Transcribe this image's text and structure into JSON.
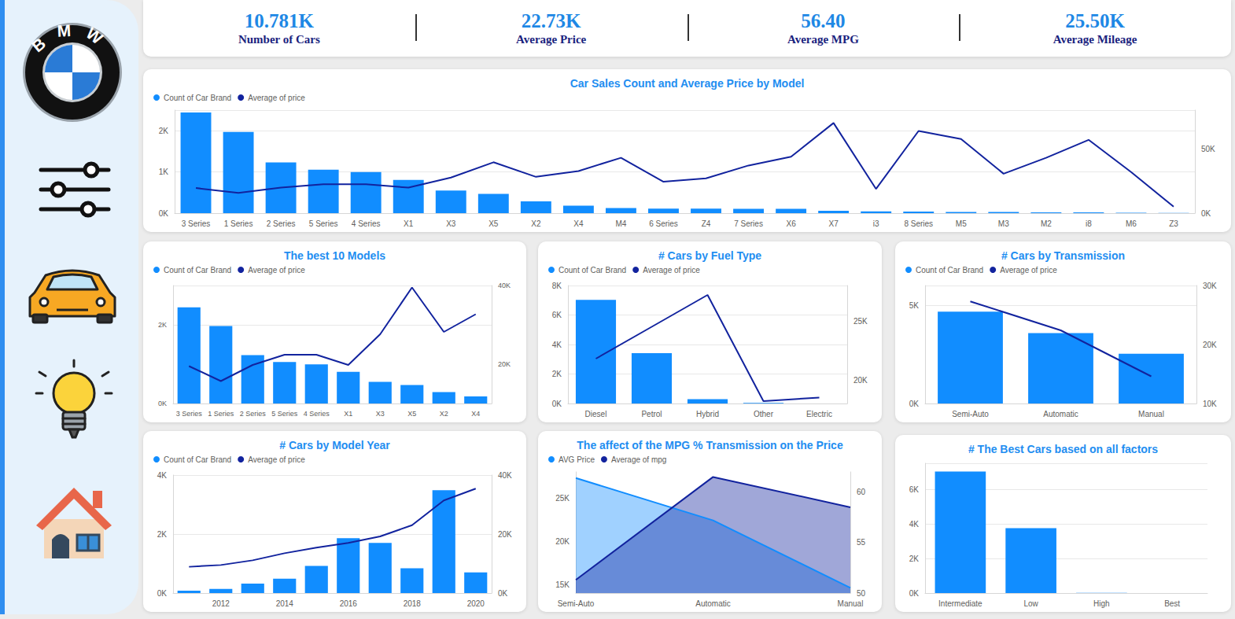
{
  "sidebar": {
    "logo": "BMW"
  },
  "kpis": [
    {
      "value": "10.781K",
      "label": "Number of Cars"
    },
    {
      "value": "22.73K",
      "label": "Average Price"
    },
    {
      "value": "56.40",
      "label": "Average MPG"
    },
    {
      "value": "25.50K",
      "label": "Average Mileage"
    }
  ],
  "chart_data": [
    {
      "type": "bar",
      "title": "Car Sales Count and Average Price by Model",
      "legend": "top-left",
      "grid": true,
      "categories": [
        "3 Series",
        "1 Series",
        "2 Series",
        "5 Series",
        "4 Series",
        "X1",
        "X3",
        "X5",
        "X2",
        "X4",
        "M4",
        "6 Series",
        "Z4",
        "7 Series",
        "X6",
        "X7",
        "i3",
        "8 Series",
        "M5",
        "M3",
        "M2",
        "i8",
        "M6",
        "Z3"
      ],
      "series": [
        {
          "name": "Count of Car Brand",
          "type": "bar",
          "color": "#118dff",
          "values": [
            2443,
            1969,
            1229,
            1056,
            995,
            804,
            551,
            468,
            288,
            179,
            125,
            108,
            108,
            106,
            106,
            55,
            43,
            39,
            29,
            27,
            21,
            17,
            8,
            7
          ]
        },
        {
          "name": "Average of price",
          "type": "line",
          "axis": "y2",
          "color": "#12239e",
          "values": [
            19500,
            15700,
            19800,
            22400,
            22400,
            19800,
            27600,
            39500,
            28200,
            32700,
            43000,
            24400,
            27000,
            37000,
            43800,
            70000,
            18800,
            63800,
            57500,
            30600,
            43000,
            56900,
            31900,
            5000
          ]
        }
      ],
      "ylim": [
        0,
        2500
      ],
      "yticks": [
        {
          "value": 0,
          "label": "0K"
        },
        {
          "value": 1000,
          "label": "1K"
        },
        {
          "value": 2000,
          "label": "2K"
        }
      ],
      "y2lim": [
        0,
        80000
      ],
      "y2ticks": [
        {
          "value": 0,
          "label": "0K"
        },
        {
          "value": 50000,
          "label": "50K"
        }
      ]
    },
    {
      "type": "bar",
      "title": "The best 10 Models",
      "legend": "top-left",
      "grid": true,
      "categories": [
        "3 Series",
        "1 Series",
        "2 Series",
        "5 Series",
        "4 Series",
        "X1",
        "X3",
        "X5",
        "X2",
        "X4"
      ],
      "series": [
        {
          "name": "Count of Car Brand",
          "type": "bar",
          "color": "#118dff",
          "values": [
            2443,
            1969,
            1229,
            1056,
            995,
            804,
            551,
            468,
            288,
            179
          ]
        },
        {
          "name": "Average of price",
          "type": "line",
          "axis": "y2",
          "color": "#12239e",
          "values": [
            19500,
            15700,
            19800,
            22400,
            22400,
            19800,
            27600,
            39500,
            28200,
            32700
          ]
        }
      ],
      "ylim": [
        0,
        3000
      ],
      "yticks": [
        {
          "value": 0,
          "label": "0K"
        },
        {
          "value": 2000,
          "label": "2K"
        }
      ],
      "y2lim": [
        10000,
        40000
      ],
      "y2ticks": [
        {
          "value": 20000,
          "label": "20K"
        },
        {
          "value": 40000,
          "label": "40K"
        }
      ]
    },
    {
      "type": "bar",
      "title": "# Cars by Fuel Type",
      "legend": "top-left",
      "grid": true,
      "categories": [
        "Diesel",
        "Petrol",
        "Hybrid",
        "Other",
        "Electric"
      ],
      "series": [
        {
          "name": "Count of Car Brand",
          "type": "bar",
          "color": "#118dff",
          "values": [
            7027,
            3417,
            298,
            36,
            3
          ]
        },
        {
          "name": "Average of price",
          "type": "line",
          "axis": "y2",
          "color": "#12239e",
          "values": [
            21800,
            24500,
            27200,
            18200,
            18500
          ]
        }
      ],
      "ylim": [
        0,
        8000
      ],
      "yticks": [
        {
          "value": 0,
          "label": "0K"
        },
        {
          "value": 2000,
          "label": "2K"
        },
        {
          "value": 4000,
          "label": "4K"
        },
        {
          "value": 6000,
          "label": "6K"
        },
        {
          "value": 8000,
          "label": "8K"
        }
      ],
      "y2lim": [
        18000,
        28000
      ],
      "y2ticks": [
        {
          "value": 20000,
          "label": "20K"
        },
        {
          "value": 25000,
          "label": "25K"
        }
      ]
    },
    {
      "type": "bar",
      "title": "# Cars by Transmission",
      "legend": "top-left",
      "grid": true,
      "categories": [
        "Semi-Auto",
        "Automatic",
        "Manual"
      ],
      "series": [
        {
          "name": "Count of Car Brand",
          "type": "bar",
          "color": "#118dff",
          "values": [
            4670,
            3580,
            2531
          ]
        },
        {
          "name": "Average of price",
          "type": "line",
          "axis": "y2",
          "color": "#12239e",
          "values": [
            27300,
            22400,
            14600
          ]
        }
      ],
      "ylim": [
        0,
        6000
      ],
      "yticks": [
        {
          "value": 0,
          "label": "0K"
        },
        {
          "value": 5000,
          "label": "5K"
        }
      ],
      "y2lim": [
        10000,
        30000
      ],
      "y2ticks": [
        {
          "value": 10000,
          "label": "10K"
        },
        {
          "value": 20000,
          "label": "20K"
        },
        {
          "value": 30000,
          "label": "30K"
        }
      ]
    },
    {
      "type": "bar",
      "title": "# Cars by Model Year",
      "legend": "top-left",
      "grid": true,
      "categories": [
        null,
        "2012",
        null,
        "2014",
        null,
        "2016",
        null,
        "2018",
        null,
        "2020"
      ],
      "series": [
        {
          "name": "Count of Car Brand",
          "type": "bar",
          "color": "#118dff",
          "values": [
            80,
            140,
            320,
            490,
            920,
            1860,
            1700,
            840,
            3490,
            700
          ]
        },
        {
          "name": "Average of price",
          "type": "line",
          "axis": "y2",
          "color": "#12239e",
          "values": [
            8900,
            9500,
            11100,
            13500,
            15400,
            17000,
            19200,
            23000,
            31400,
            35400
          ]
        }
      ],
      "ylim": [
        0,
        4000
      ],
      "yticks": [
        {
          "value": 0,
          "label": "0K"
        },
        {
          "value": 2000,
          "label": "2K"
        },
        {
          "value": 4000,
          "label": "4K"
        }
      ],
      "y2lim": [
        0,
        40000
      ],
      "y2ticks": [
        {
          "value": 0,
          "label": "0K"
        },
        {
          "value": 20000,
          "label": "20K"
        },
        {
          "value": 40000,
          "label": "40K"
        }
      ]
    },
    {
      "type": "area",
      "title": "The affect of the MPG % Transmission on the Price",
      "legend": "top-left",
      "grid": false,
      "categories": [
        "Semi-Auto",
        "Automatic",
        "Manual"
      ],
      "series": [
        {
          "name": "AVG Price",
          "type": "area",
          "color": "#118dff",
          "values": [
            27300,
            22400,
            14600
          ]
        },
        {
          "name": "Average of mpg",
          "type": "area",
          "axis": "y2",
          "color": "#12239e",
          "values": [
            51.3,
            61.5,
            58.5
          ]
        }
      ],
      "ylim": [
        14000,
        28000
      ],
      "yticks": [
        {
          "value": 15000,
          "label": "15K"
        },
        {
          "value": 20000,
          "label": "20K"
        },
        {
          "value": 25000,
          "label": "25K"
        }
      ],
      "y2lim": [
        50,
        62
      ],
      "y2ticks": [
        50,
        55,
        60
      ]
    },
    {
      "type": "bar",
      "title": "# The Best Cars based on all factors",
      "grid": true,
      "color": "#118dff",
      "categories": [
        "Intermediate",
        "Low",
        "High",
        "Best"
      ],
      "values": [
        7020,
        3745,
        12,
        4
      ],
      "ylim": [
        0,
        7500
      ],
      "yticks": [
        {
          "value": 0,
          "label": "0K"
        },
        {
          "value": 2000,
          "label": "2K"
        },
        {
          "value": 4000,
          "label": "4K"
        },
        {
          "value": 6000,
          "label": "6K"
        }
      ]
    }
  ]
}
